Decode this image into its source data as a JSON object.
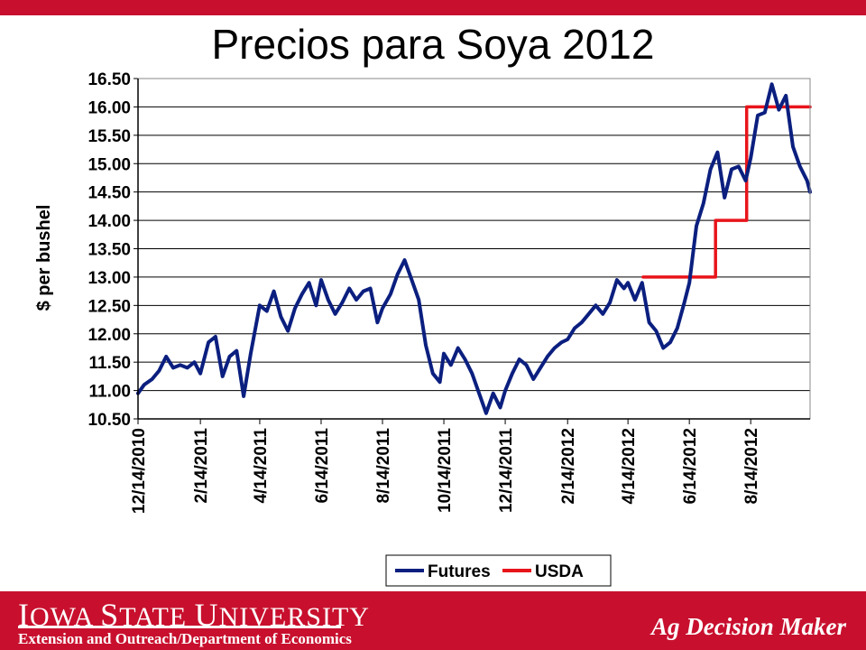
{
  "slide": {
    "title": "Precios para Soya 2012"
  },
  "footer": {
    "university_name": "Iowa State University",
    "department": "Extension and Outreach/Department of Economics",
    "brand": "Ag Decision Maker"
  },
  "colors": {
    "brand_red": "#c8102e",
    "futures_line": "#0b1f7f",
    "usda_line": "#e8141a",
    "gridline": "#000000"
  },
  "chart_data": {
    "type": "line",
    "ylabel": "$ per bushel",
    "xlabel": "",
    "ylim": [
      10.5,
      16.5
    ],
    "y_ticks": [
      "10.50",
      "11.00",
      "11.50",
      "12.00",
      "12.50",
      "13.00",
      "13.50",
      "14.00",
      "14.50",
      "15.00",
      "15.50",
      "16.00",
      "16.50"
    ],
    "x_ticks": [
      "12/14/2010",
      "2/14/2011",
      "4/14/2011",
      "6/14/2011",
      "8/14/2011",
      "10/14/2011",
      "12/14/2011",
      "2/14/2012",
      "4/14/2012",
      "6/14/2012",
      "8/14/2012"
    ],
    "x_range": [
      "12/14/2010",
      "10/12/2012"
    ],
    "grid": true,
    "legend_position": "bottom",
    "series": [
      {
        "name": "Futures",
        "color": "#0b1f7f",
        "x": [
          "2010-12-14",
          "2010-12-20",
          "2010-12-28",
          "2011-01-04",
          "2011-01-11",
          "2011-01-18",
          "2011-01-25",
          "2011-02-01",
          "2011-02-08",
          "2011-02-14",
          "2011-02-22",
          "2011-03-01",
          "2011-03-08",
          "2011-03-15",
          "2011-03-22",
          "2011-03-29",
          "2011-04-05",
          "2011-04-14",
          "2011-04-21",
          "2011-04-28",
          "2011-05-05",
          "2011-05-12",
          "2011-05-19",
          "2011-05-26",
          "2011-06-02",
          "2011-06-09",
          "2011-06-14",
          "2011-06-21",
          "2011-06-28",
          "2011-07-05",
          "2011-07-12",
          "2011-07-19",
          "2011-07-26",
          "2011-08-02",
          "2011-08-09",
          "2011-08-14",
          "2011-08-22",
          "2011-08-29",
          "2011-09-05",
          "2011-09-12",
          "2011-09-19",
          "2011-09-26",
          "2011-10-03",
          "2011-10-10",
          "2011-10-14",
          "2011-10-21",
          "2011-10-28",
          "2011-11-04",
          "2011-11-11",
          "2011-11-18",
          "2011-11-25",
          "2011-12-02",
          "2011-12-09",
          "2011-12-14",
          "2011-12-21",
          "2011-12-28",
          "2012-01-04",
          "2012-01-11",
          "2012-01-18",
          "2012-01-25",
          "2012-02-01",
          "2012-02-08",
          "2012-02-14",
          "2012-02-21",
          "2012-02-28",
          "2012-03-06",
          "2012-03-13",
          "2012-03-20",
          "2012-03-27",
          "2012-04-03",
          "2012-04-10",
          "2012-04-14",
          "2012-04-21",
          "2012-04-28",
          "2012-05-05",
          "2012-05-12",
          "2012-05-19",
          "2012-05-26",
          "2012-06-02",
          "2012-06-09",
          "2012-06-14",
          "2012-06-21",
          "2012-06-28",
          "2012-07-05",
          "2012-07-12",
          "2012-07-19",
          "2012-07-26",
          "2012-08-02",
          "2012-08-09",
          "2012-08-14",
          "2012-08-21",
          "2012-08-28",
          "2012-09-04",
          "2012-09-11",
          "2012-09-18",
          "2012-09-25",
          "2012-10-02",
          "2012-10-09",
          "2012-10-12"
        ],
        "y": [
          10.95,
          11.1,
          11.2,
          11.35,
          11.6,
          11.4,
          11.45,
          11.4,
          11.5,
          11.3,
          11.85,
          11.95,
          11.25,
          11.6,
          11.7,
          10.9,
          11.65,
          12.5,
          12.4,
          12.75,
          12.3,
          12.05,
          12.45,
          12.7,
          12.9,
          12.5,
          12.95,
          12.6,
          12.35,
          12.55,
          12.8,
          12.6,
          12.75,
          12.8,
          12.2,
          12.45,
          12.7,
          13.05,
          13.3,
          12.95,
          12.6,
          11.8,
          11.3,
          11.15,
          11.65,
          11.45,
          11.75,
          11.55,
          11.3,
          10.95,
          10.6,
          10.95,
          10.7,
          11.0,
          11.3,
          11.55,
          11.45,
          11.2,
          11.4,
          11.6,
          11.75,
          11.85,
          11.9,
          12.1,
          12.2,
          12.35,
          12.5,
          12.35,
          12.55,
          12.95,
          12.8,
          12.9,
          12.6,
          12.9,
          12.2,
          12.05,
          11.75,
          11.85,
          12.1,
          12.55,
          12.9,
          13.9,
          14.3,
          14.9,
          15.2,
          14.4,
          14.9,
          14.95,
          14.7,
          15.1,
          15.85,
          15.9,
          16.4,
          15.95,
          16.2,
          15.3,
          14.95,
          14.7,
          14.5
        ]
      },
      {
        "name": "USDA",
        "color": "#e8141a",
        "x": [
          "2012-04-29",
          "2012-07-10",
          "2012-07-10",
          "2012-08-10",
          "2012-08-10",
          "2012-10-12"
        ],
        "y": [
          13.0,
          13.0,
          14.0,
          14.0,
          16.0,
          16.0
        ]
      }
    ]
  }
}
